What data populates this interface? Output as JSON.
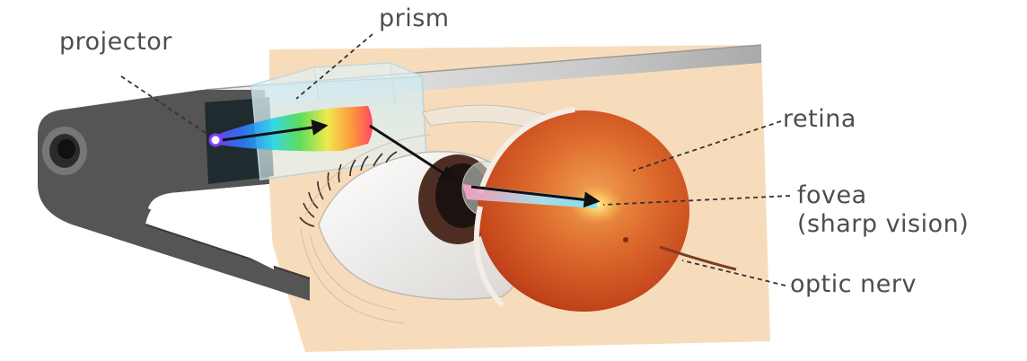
{
  "labels": {
    "projector": "projector",
    "prism": "prism",
    "retina": "retina",
    "fovea": "fovea",
    "fovea_note": "(sharp vision)",
    "optic_nerve": "optic nerv"
  }
}
